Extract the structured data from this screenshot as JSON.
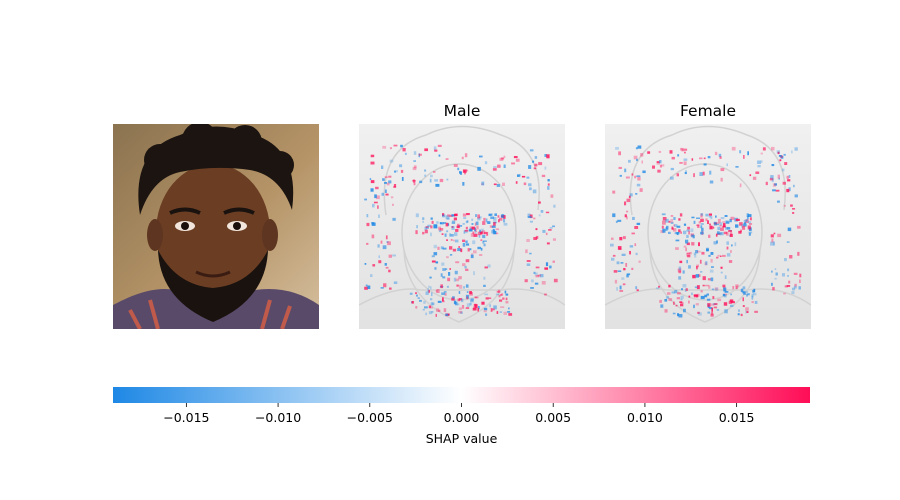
{
  "chart_data": {
    "type": "heatmap",
    "description_kind": "shap-image-plot",
    "panels": [
      {
        "title": "",
        "kind": "image"
      },
      {
        "title": "Male",
        "kind": "shap-overlay"
      },
      {
        "title": "Female",
        "kind": "shap-overlay"
      }
    ],
    "colorbar": {
      "label": "SHAP value",
      "vmin": -0.019,
      "vmax": 0.019,
      "ticks": [
        -0.015,
        -0.01,
        -0.005,
        0.0,
        0.005,
        0.01,
        0.015
      ],
      "tick_labels": [
        "−0.015",
        "−0.010",
        "−0.005",
        "0.000",
        "0.005",
        "0.010",
        "0.015"
      ],
      "colors": {
        "negative": "#1e88e5",
        "zero": "#ffffff",
        "positive": "#ff0d57"
      }
    }
  },
  "colors": {
    "face_skin": "#6b3e24",
    "hair": "#1c1410",
    "background_warm": "#9a7a4a",
    "overlay_gray": "#e6e6e6"
  }
}
